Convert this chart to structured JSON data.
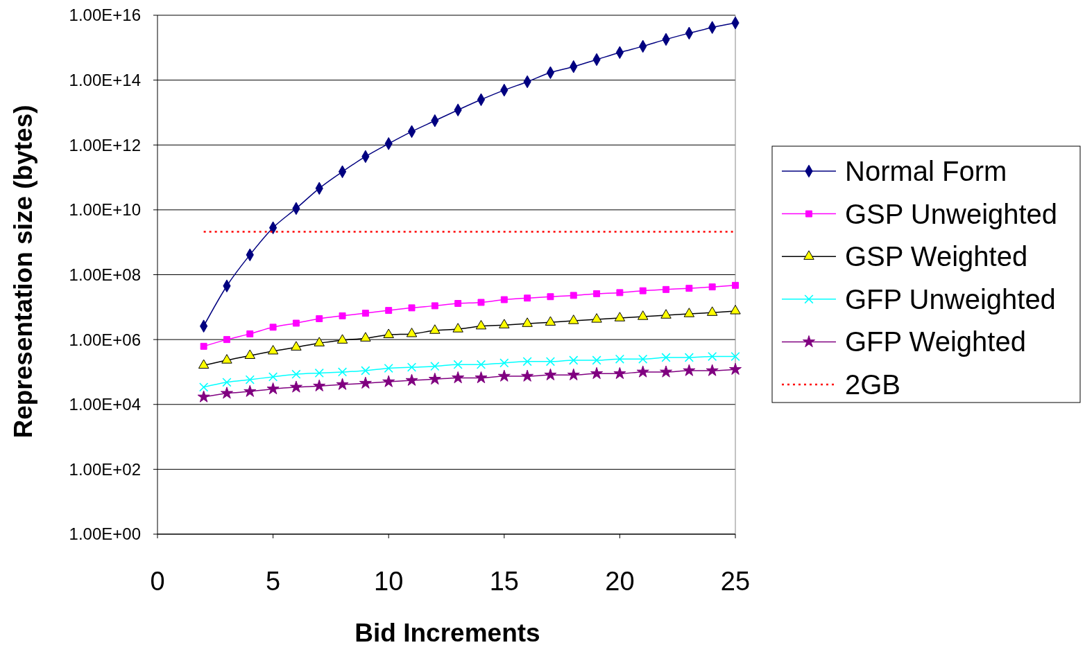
{
  "chart_data": {
    "type": "line",
    "xlabel": "Bid Increments",
    "ylabel": "Representation size (bytes)",
    "x": [
      2,
      3,
      4,
      5,
      6,
      7,
      8,
      9,
      10,
      11,
      12,
      13,
      14,
      15,
      16,
      17,
      18,
      19,
      20,
      21,
      22,
      23,
      24,
      25
    ],
    "xlim": [
      0,
      25
    ],
    "xticks": [
      0,
      5,
      10,
      15,
      20,
      25
    ],
    "log": "y",
    "ylim": [
      1,
      1e+16
    ],
    "yticks": [
      {
        "value": 1,
        "label": "1.00E+00"
      },
      {
        "value": 100,
        "label": "1.00E+02"
      },
      {
        "value": 10000,
        "label": "1.00E+04"
      },
      {
        "value": 1000000,
        "label": "1.00E+06"
      },
      {
        "value": 100000000,
        "label": "1.00E+08"
      },
      {
        "value": 10000000000,
        "label": "1.00E+10"
      },
      {
        "value": 1000000000000,
        "label": "1.00E+12"
      },
      {
        "value": 100000000000000,
        "label": "1.00E+14"
      },
      {
        "value": 10000000000000000,
        "label": "1.00E+16"
      }
    ],
    "grid": "y",
    "legend": "right",
    "series": [
      {
        "name": "Normal Form",
        "color": "#000080",
        "marker": "diamond",
        "values": [
          2600000.0,
          45000000.0,
          410000000.0,
          2800000000.0,
          11000000000.0,
          46000000000.0,
          150000000000.0,
          440000000000.0,
          1100000000000.0,
          2600000000000.0,
          5600000000000.0,
          12000000000000.0,
          25000000000000.0,
          49000000000000.0,
          89000000000000.0,
          170000000000000.0,
          260000000000000.0,
          430000000000000.0,
          710000000000000.0,
          1100000000000000.0,
          1800000000000000.0,
          2800000000000000.0,
          4200000000000000.0,
          5800000000000000.0
        ]
      },
      {
        "name": "GSP Unweighted",
        "color": "#ff00ff",
        "marker": "square",
        "values": [
          620000.0,
          1000000.0,
          1500000.0,
          2400000.0,
          3200000.0,
          4400000.0,
          5400000.0,
          6500000.0,
          7900000.0,
          9500000.0,
          11000000.0,
          13000000.0,
          14000000.0,
          17000000.0,
          19000000.0,
          21000000.0,
          23000000.0,
          26000000.0,
          28000000.0,
          32000000.0,
          35000000.0,
          38000000.0,
          42000000.0,
          47000000.0
        ]
      },
      {
        "name": "GSP Weighted",
        "color": "#000000",
        "marker": "triangle",
        "values": [
          160000.0,
          230000.0,
          320000.0,
          440000.0,
          580000.0,
          780000.0,
          950000.0,
          1100000.0,
          1400000.0,
          1500000.0,
          1900000.0,
          2100000.0,
          2600000.0,
          2800000.0,
          3100000.0,
          3400000.0,
          3800000.0,
          4200000.0,
          4600000.0,
          5100000.0,
          5600000.0,
          6200000.0,
          6800000.0,
          7600000.0
        ]
      },
      {
        "name": "GFP Unweighted",
        "color": "#00ffff",
        "marker": "cross",
        "values": [
          34000.0,
          48000.0,
          58000.0,
          71000.0,
          85000.0,
          93000.0,
          100000.0,
          110000.0,
          130000.0,
          140000.0,
          150000.0,
          170000.0,
          170000.0,
          190000.0,
          210000.0,
          210000.0,
          230000.0,
          230000.0,
          250000.0,
          250000.0,
          280000.0,
          280000.0,
          300000.0,
          300000.0
        ]
      },
      {
        "name": "GFP Weighted",
        "color": "#800080",
        "marker": "star",
        "values": [
          17000.0,
          22000.0,
          25000.0,
          30000.0,
          34000.0,
          37000.0,
          41000.0,
          45000.0,
          50000.0,
          55000.0,
          60000.0,
          66000.0,
          66000.0,
          74000.0,
          74000.0,
          81000.0,
          81000.0,
          89000.0,
          89000.0,
          100000.0,
          100000.0,
          110000.0,
          110000.0,
          120000.0
        ]
      },
      {
        "name": "2GB",
        "color": "#ff0000",
        "marker": "none",
        "line_style": "dotted",
        "x": [
          2,
          25
        ],
        "values": [
          2100000000.0,
          2100000000.0
        ]
      }
    ]
  }
}
